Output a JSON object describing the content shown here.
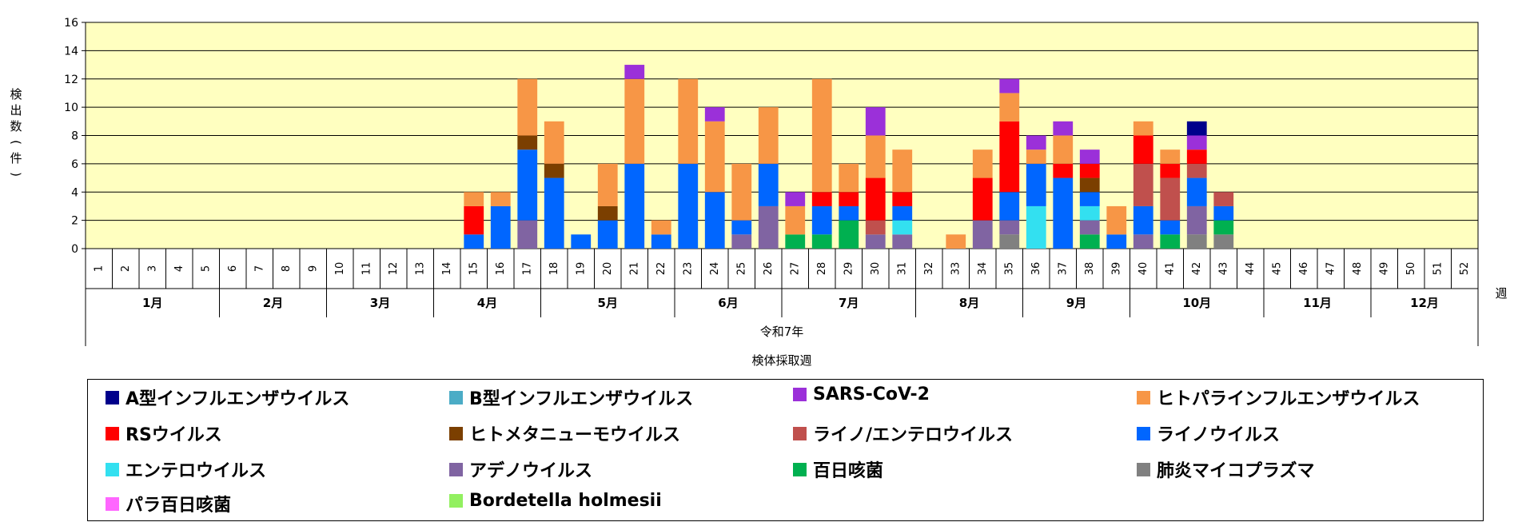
{
  "chart_data": {
    "type": "bar",
    "stacked": true,
    "ylabel": "検出数(件)",
    "ylim": [
      0,
      16
    ],
    "yticks": [
      0,
      2,
      4,
      6,
      8,
      10,
      12,
      14,
      16
    ],
    "plot_background": "#FFFFC0",
    "grid": true,
    "week_axis_label": "週",
    "year_label": "令和7年",
    "xlabel": "検体採取週",
    "categories": [
      "1",
      "2",
      "3",
      "4",
      "5",
      "6",
      "7",
      "8",
      "9",
      "10",
      "11",
      "12",
      "13",
      "14",
      "15",
      "16",
      "17",
      "18",
      "19",
      "20",
      "21",
      "22",
      "23",
      "24",
      "25",
      "26",
      "27",
      "28",
      "29",
      "30",
      "31",
      "32",
      "33",
      "34",
      "35",
      "36",
      "37",
      "38",
      "39",
      "40",
      "41",
      "42",
      "43",
      "44",
      "45",
      "46",
      "47",
      "48",
      "49",
      "50",
      "51",
      "52"
    ],
    "months": [
      {
        "label": "1月",
        "start_week": 1,
        "end_week": 5
      },
      {
        "label": "2月",
        "start_week": 6,
        "end_week": 9
      },
      {
        "label": "3月",
        "start_week": 10,
        "end_week": 13
      },
      {
        "label": "4月",
        "start_week": 14,
        "end_week": 17
      },
      {
        "label": "5月",
        "start_week": 18,
        "end_week": 22
      },
      {
        "label": "6月",
        "start_week": 23,
        "end_week": 26
      },
      {
        "label": "7月",
        "start_week": 27,
        "end_week": 31
      },
      {
        "label": "8月",
        "start_week": 32,
        "end_week": 35
      },
      {
        "label": "9月",
        "start_week": 36,
        "end_week": 39
      },
      {
        "label": "10月",
        "start_week": 40,
        "end_week": 44
      },
      {
        "label": "11月",
        "start_week": 45,
        "end_week": 48
      },
      {
        "label": "12月",
        "start_week": 49,
        "end_week": 52
      }
    ],
    "series": [
      {
        "name": "A型インフルエンザウイルス",
        "color": "#00008B",
        "values": [
          0,
          0,
          0,
          0,
          0,
          0,
          0,
          0,
          0,
          0,
          0,
          0,
          0,
          0,
          0,
          0,
          0,
          0,
          0,
          0,
          0,
          0,
          0,
          0,
          0,
          0,
          0,
          0,
          0,
          0,
          0,
          0,
          0,
          0,
          0,
          0,
          0,
          0,
          0,
          0,
          0,
          1,
          0,
          0,
          0,
          0,
          0,
          0,
          0,
          0,
          0,
          0
        ]
      },
      {
        "name": "B型インフルエンザウイルス",
        "color": "#4BACC6",
        "values": [
          0,
          0,
          0,
          0,
          0,
          0,
          0,
          0,
          0,
          0,
          0,
          0,
          0,
          0,
          0,
          0,
          0,
          0,
          0,
          0,
          0,
          0,
          0,
          0,
          0,
          0,
          0,
          0,
          0,
          0,
          0,
          0,
          0,
          0,
          0,
          0,
          0,
          0,
          0,
          0,
          0,
          0,
          0,
          0,
          0,
          0,
          0,
          0,
          0,
          0,
          0,
          0
        ]
      },
      {
        "name": "SARS-CoV-2",
        "color": "#9B30D9",
        "values": [
          0,
          0,
          0,
          0,
          0,
          0,
          0,
          0,
          0,
          0,
          0,
          0,
          0,
          0,
          0,
          0,
          0,
          0,
          0,
          0,
          1,
          0,
          0,
          1,
          0,
          0,
          1,
          0,
          0,
          2,
          0,
          0,
          0,
          0,
          1,
          1,
          1,
          1,
          0,
          0,
          0,
          1,
          0,
          0,
          0,
          0,
          0,
          0,
          0,
          0,
          0,
          0
        ]
      },
      {
        "name": "ヒトパラインフルエンザウイルス",
        "color": "#F79646",
        "values": [
          0,
          0,
          0,
          0,
          0,
          0,
          0,
          0,
          0,
          0,
          0,
          0,
          0,
          0,
          1,
          1,
          4,
          3,
          0,
          3,
          6,
          1,
          6,
          5,
          4,
          4,
          2,
          8,
          2,
          3,
          3,
          0,
          1,
          2,
          2,
          1,
          2,
          0,
          2,
          1,
          1,
          0,
          0,
          0,
          0,
          0,
          0,
          0,
          0,
          0,
          0,
          0
        ]
      },
      {
        "name": "RSウイルス",
        "color": "#FF0000",
        "values": [
          0,
          0,
          0,
          0,
          0,
          0,
          0,
          0,
          0,
          0,
          0,
          0,
          0,
          0,
          2,
          0,
          0,
          0,
          0,
          0,
          0,
          0,
          0,
          0,
          0,
          0,
          0,
          1,
          1,
          3,
          1,
          0,
          0,
          3,
          5,
          0,
          1,
          1,
          0,
          2,
          1,
          1,
          0,
          0,
          0,
          0,
          0,
          0,
          0,
          0,
          0,
          0
        ]
      },
      {
        "name": "ヒトメタニューモウイルス",
        "color": "#7B3F00",
        "values": [
          0,
          0,
          0,
          0,
          0,
          0,
          0,
          0,
          0,
          0,
          0,
          0,
          0,
          0,
          0,
          0,
          1,
          1,
          0,
          1,
          0,
          0,
          0,
          0,
          0,
          0,
          0,
          0,
          0,
          0,
          0,
          0,
          0,
          0,
          0,
          0,
          0,
          1,
          0,
          0,
          0,
          0,
          0,
          0,
          0,
          0,
          0,
          0,
          0,
          0,
          0,
          0
        ]
      },
      {
        "name": "ライノ/エンテロウイルス",
        "color": "#C0504D",
        "values": [
          0,
          0,
          0,
          0,
          0,
          0,
          0,
          0,
          0,
          0,
          0,
          0,
          0,
          0,
          0,
          0,
          0,
          0,
          0,
          0,
          0,
          0,
          0,
          0,
          0,
          0,
          0,
          0,
          0,
          1,
          0,
          0,
          0,
          0,
          0,
          0,
          0,
          0,
          0,
          3,
          3,
          1,
          1,
          0,
          0,
          0,
          0,
          0,
          0,
          0,
          0,
          0
        ]
      },
      {
        "name": "ライノウイルス",
        "color": "#0066FF",
        "values": [
          0,
          0,
          0,
          0,
          0,
          0,
          0,
          0,
          0,
          0,
          0,
          0,
          0,
          0,
          1,
          3,
          5,
          5,
          1,
          2,
          6,
          1,
          6,
          4,
          1,
          3,
          0,
          2,
          1,
          0,
          1,
          0,
          0,
          0,
          2,
          3,
          5,
          1,
          1,
          2,
          1,
          2,
          1,
          0,
          0,
          0,
          0,
          0,
          0,
          0,
          0,
          0
        ]
      },
      {
        "name": "エンテロウイルス",
        "color": "#33E0F0",
        "values": [
          0,
          0,
          0,
          0,
          0,
          0,
          0,
          0,
          0,
          0,
          0,
          0,
          0,
          0,
          0,
          0,
          0,
          0,
          0,
          0,
          0,
          0,
          0,
          0,
          0,
          0,
          0,
          0,
          0,
          0,
          1,
          0,
          0,
          0,
          0,
          3,
          0,
          1,
          0,
          0,
          0,
          0,
          0,
          0,
          0,
          0,
          0,
          0,
          0,
          0,
          0,
          0
        ]
      },
      {
        "name": "アデノウイルス",
        "color": "#8064A2",
        "values": [
          0,
          0,
          0,
          0,
          0,
          0,
          0,
          0,
          0,
          0,
          0,
          0,
          0,
          0,
          0,
          0,
          2,
          0,
          0,
          0,
          0,
          0,
          0,
          0,
          1,
          3,
          0,
          0,
          0,
          1,
          1,
          0,
          0,
          2,
          1,
          0,
          0,
          1,
          0,
          1,
          0,
          2,
          0,
          0,
          0,
          0,
          0,
          0,
          0,
          0,
          0,
          0
        ]
      },
      {
        "name": "百日咳菌",
        "color": "#00B050",
        "values": [
          0,
          0,
          0,
          0,
          0,
          0,
          0,
          0,
          0,
          0,
          0,
          0,
          0,
          0,
          0,
          0,
          0,
          0,
          0,
          0,
          0,
          0,
          0,
          0,
          0,
          0,
          1,
          1,
          2,
          0,
          0,
          0,
          0,
          0,
          0,
          0,
          0,
          1,
          0,
          0,
          1,
          0,
          1,
          0,
          0,
          0,
          0,
          0,
          0,
          0,
          0,
          0
        ]
      },
      {
        "name": "肺炎マイコプラズマ",
        "color": "#808080",
        "values": [
          0,
          0,
          0,
          0,
          0,
          0,
          0,
          0,
          0,
          0,
          0,
          0,
          0,
          0,
          0,
          0,
          0,
          0,
          0,
          0,
          0,
          0,
          0,
          0,
          0,
          0,
          0,
          0,
          0,
          0,
          0,
          0,
          0,
          0,
          1,
          0,
          0,
          0,
          0,
          0,
          0,
          1,
          1,
          0,
          0,
          0,
          0,
          0,
          0,
          0,
          0,
          0
        ]
      },
      {
        "name": "パラ百日咳菌",
        "color": "#FF66FF",
        "values": [
          0,
          0,
          0,
          0,
          0,
          0,
          0,
          0,
          0,
          0,
          0,
          0,
          0,
          0,
          0,
          0,
          0,
          0,
          0,
          0,
          0,
          0,
          0,
          0,
          0,
          0,
          0,
          0,
          0,
          0,
          0,
          0,
          0,
          0,
          0,
          0,
          0,
          0,
          0,
          0,
          0,
          0,
          0,
          0,
          0,
          0,
          0,
          0,
          0,
          0,
          0,
          0
        ]
      },
      {
        "name": "Bordetella holmesii",
        "color": "#92F060",
        "values": [
          0,
          0,
          0,
          0,
          0,
          0,
          0,
          0,
          0,
          0,
          0,
          0,
          0,
          0,
          0,
          0,
          0,
          0,
          0,
          0,
          0,
          0,
          0,
          0,
          0,
          0,
          0,
          0,
          0,
          0,
          0,
          0,
          0,
          0,
          0,
          0,
          0,
          0,
          0,
          0,
          0,
          0,
          0,
          0,
          0,
          0,
          0,
          0,
          0,
          0,
          0,
          0
        ]
      }
    ],
    "stack_order_bottom_to_top": [
      "肺炎マイコプラズマ",
      "百日咳菌",
      "アデノウイルス",
      "エンテロウイルス",
      "ライノウイルス",
      "ライノ/エンテロウイルス",
      "ヒトメタニューモウイルス",
      "RSウイルス",
      "ヒトパラインフルエンザウイルス",
      "SARS-CoV-2",
      "A型インフルエンザウイルス",
      "B型インフルエンザウイルス",
      "パラ百日咳菌",
      "Bordetella holmesii"
    ],
    "legend": {
      "placement": "bottom",
      "columns": 4
    }
  }
}
